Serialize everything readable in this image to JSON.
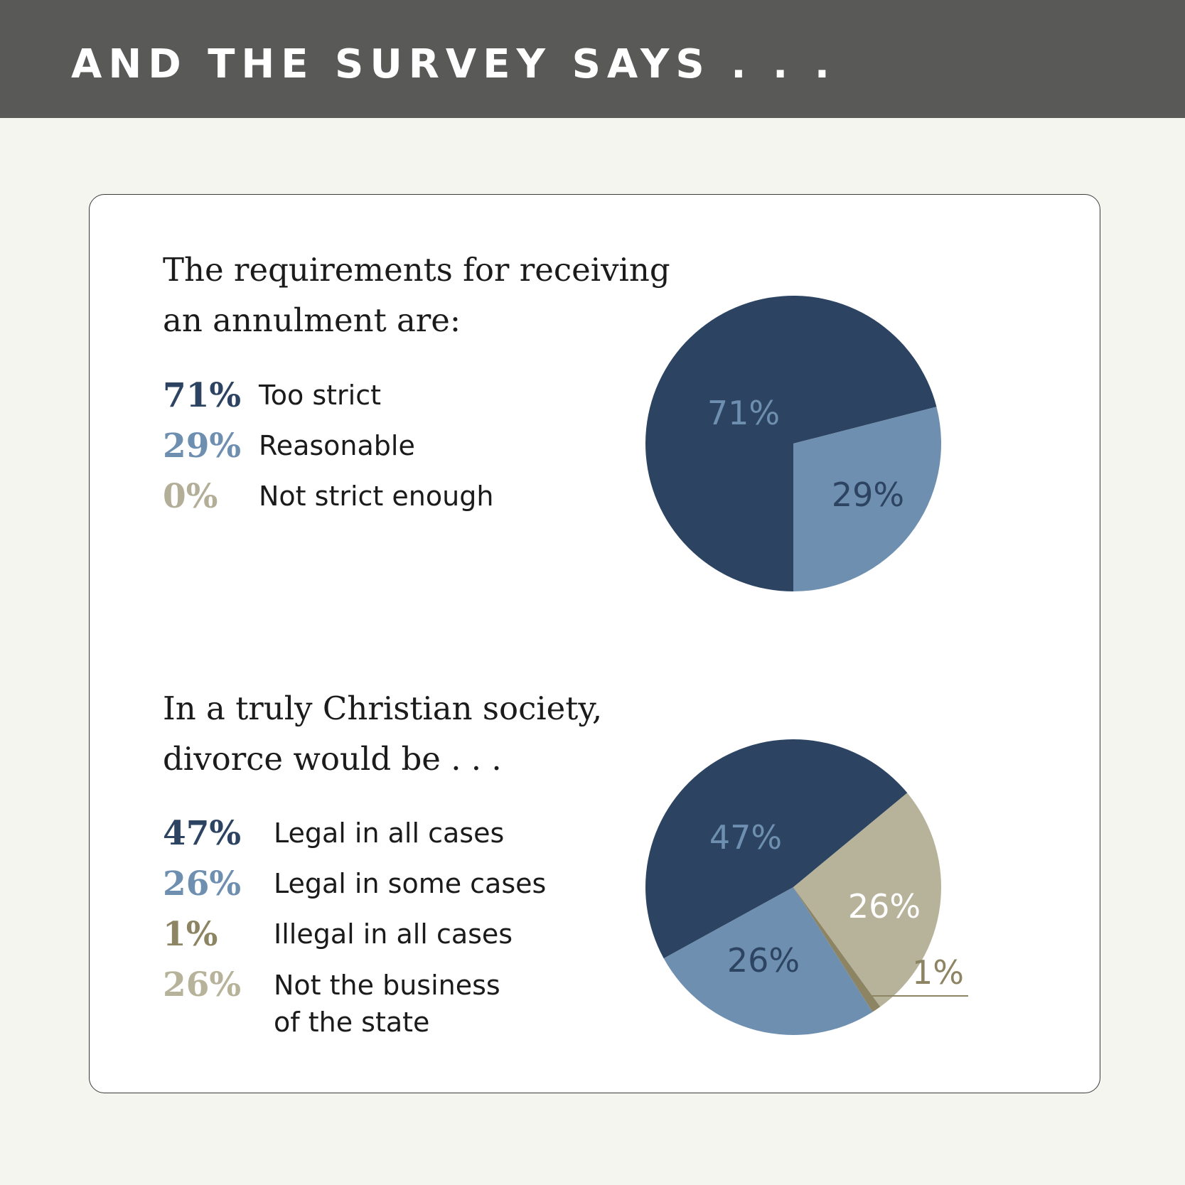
{
  "header": {
    "title": "AND THE SURVEY SAYS . . ."
  },
  "colors": {
    "dark_navy": "#2c4462",
    "steel_blue": "#6e8fb0",
    "olive": "#8c8462",
    "khaki": "#b3ae97",
    "light_khaki": "#b7b29a"
  },
  "chart_data": [
    {
      "type": "pie",
      "title_lines": [
        "The requirements for receiving",
        "an annulment are:"
      ],
      "slices": [
        {
          "pct_label": "71%",
          "label": "Too strict",
          "value": 71,
          "slice_label": "71%"
        },
        {
          "pct_label": "29%",
          "label": "Reasonable",
          "value": 29,
          "slice_label": "29%"
        },
        {
          "pct_label": "0%",
          "label": "Not strict enough",
          "value": 0,
          "slice_label": ""
        }
      ]
    },
    {
      "type": "pie",
      "title_lines": [
        "In a truly Christian society,",
        "divorce would be . . ."
      ],
      "slices": [
        {
          "pct_label": "47%",
          "label_lines": [
            "Legal in all cases"
          ],
          "value": 47,
          "slice_label": "47%"
        },
        {
          "pct_label": "26%",
          "label_lines": [
            "Legal in some cases"
          ],
          "value": 26,
          "slice_label": "26%"
        },
        {
          "pct_label": "1%",
          "label_lines": [
            "Illegal in all cases"
          ],
          "value": 1,
          "slice_label": "1%"
        },
        {
          "pct_label": "26%",
          "label_lines": [
            "Not the business",
            "of the state"
          ],
          "value": 26,
          "slice_label": "26%"
        }
      ]
    }
  ]
}
